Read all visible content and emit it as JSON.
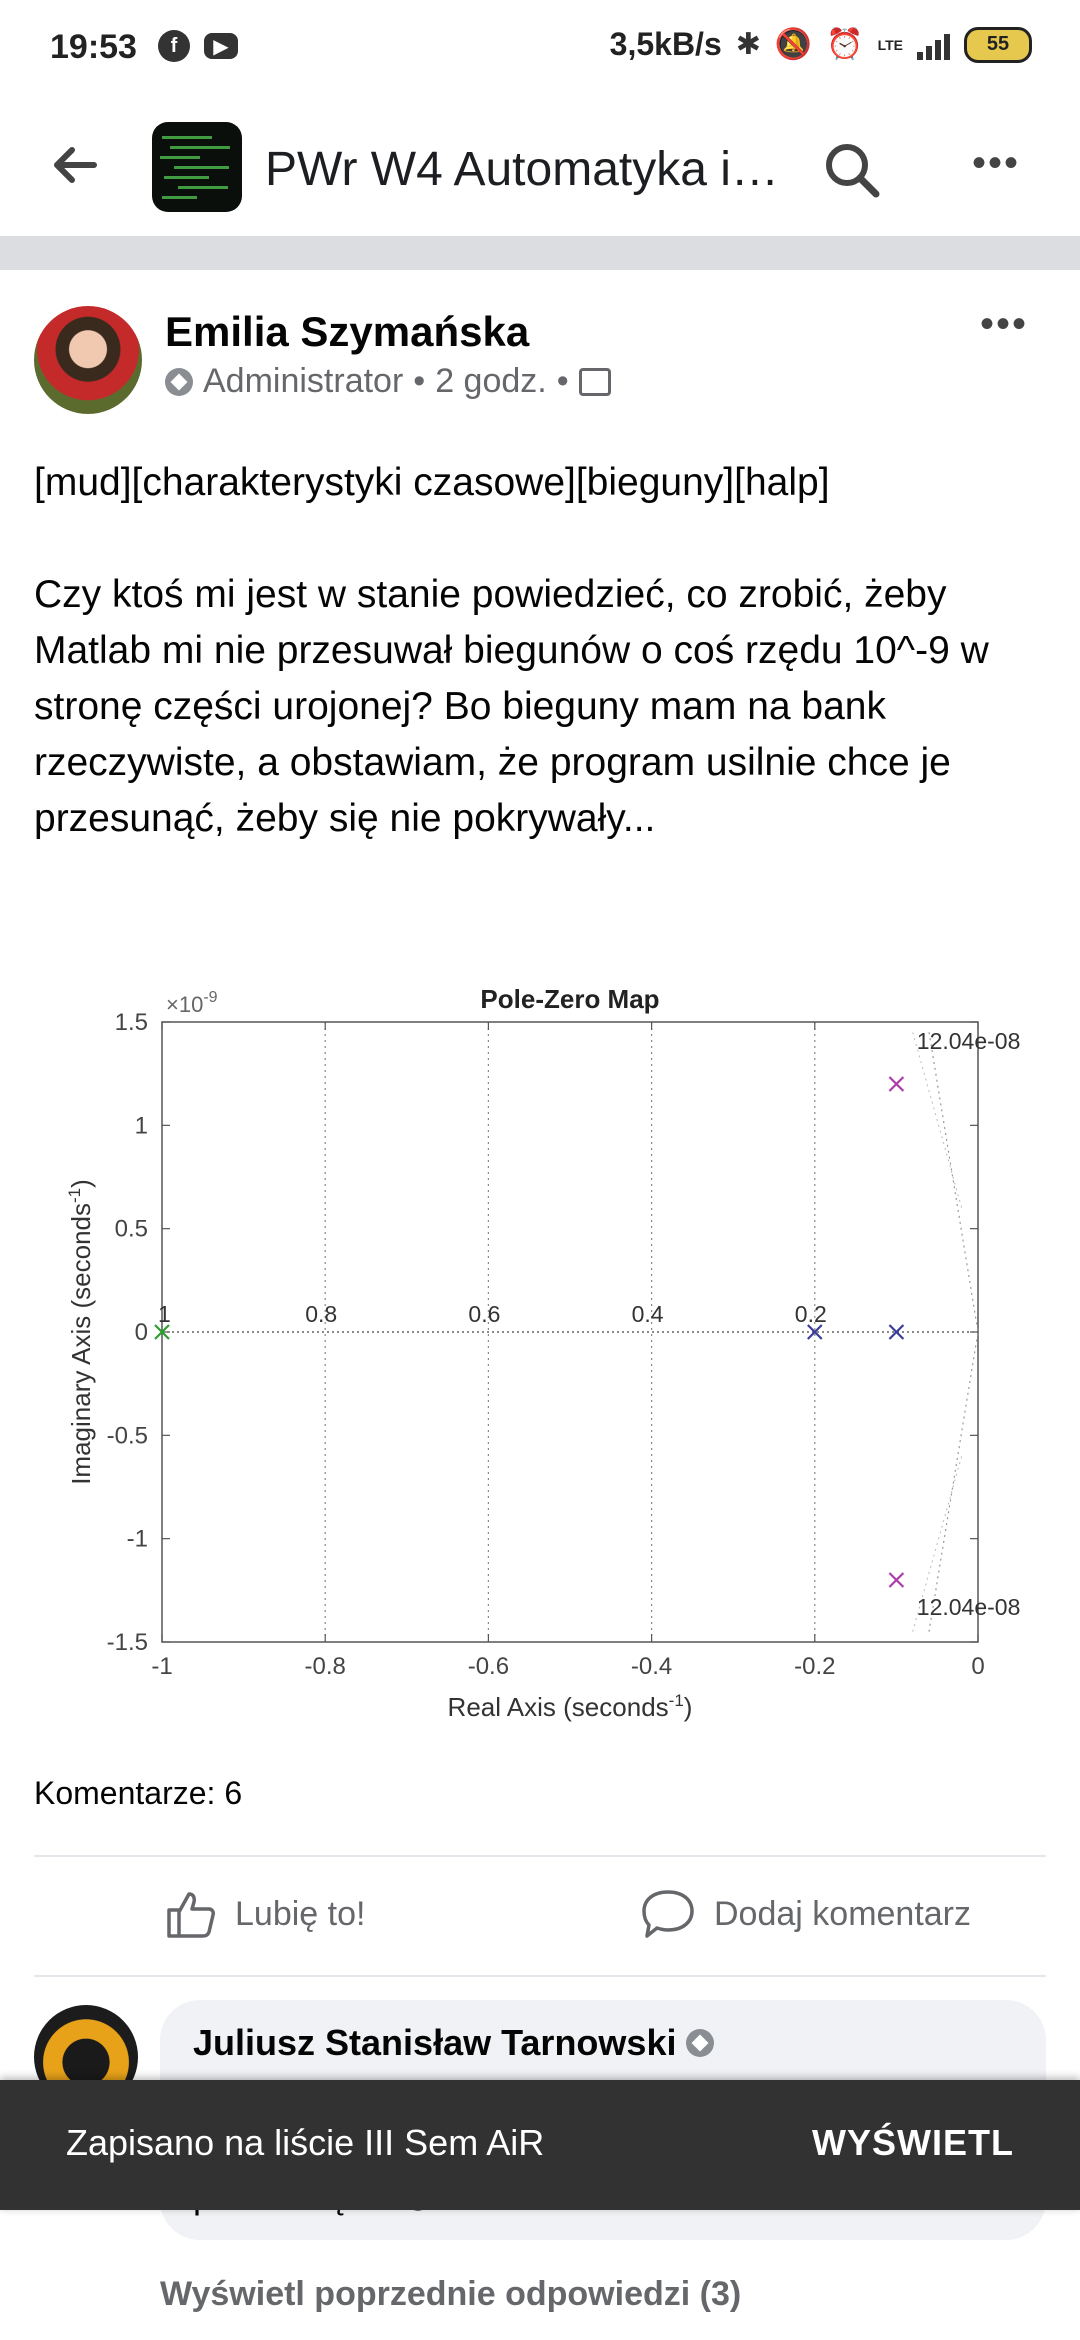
{
  "status_bar": {
    "time": "19:53",
    "speed": "3,5kB/s",
    "network": "LTE",
    "battery": "55",
    "icons": [
      "facebook-icon",
      "youtube-icon",
      "bluetooth-icon",
      "bell-off-icon",
      "alarm-icon",
      "signal-icon",
      "battery-icon"
    ]
  },
  "header": {
    "title": "PWr W4 Automatyka i…"
  },
  "post": {
    "author": "Emilia Szymańska",
    "role": "Administrator",
    "time": "2 godz.",
    "separator": "•",
    "tags_line": "[mud][charakterystyki czasowe][bieguny][halp]",
    "body": "Czy ktoś mi jest w stanie powiedzieć, co zrobić, żeby Matlab mi nie przesuwał biegunów o coś rzędu 10^-9 w stronę części urojonej? Bo bieguny mam na bank rzeczywiste, a obstawiam, że program usilnie chce je przesunąć, żeby się nie pokrywały...",
    "comments_count": "Komentarze: 6"
  },
  "actions": {
    "like": "Lubię to!",
    "comment": "Dodaj komentarz"
  },
  "comment": {
    "author": "Juliusz Stanisław Tarnowski",
    "text_partial": "przesunięte. 😜",
    "view_previous": "Wyświetl poprzednie odpowiedzi (3)"
  },
  "snackbar": {
    "message": "Zapisano na liście III Sem AiR",
    "action": "WYŚWIETL"
  },
  "chart_data": {
    "type": "scatter",
    "title": "Pole-Zero Map",
    "xlabel": "Real Axis (seconds",
    "xlabel_sup": "-1",
    "xlabel_end": ")",
    "ylabel": "Imaginary Axis (seconds",
    "ylabel_sup": "-1",
    "ylabel_end": ")",
    "y_scale_label": "×10",
    "y_scale_exp": "-9",
    "xlim": [
      -1,
      0
    ],
    "ylim": [
      -1.5,
      1.5
    ],
    "x_ticks": [
      "-1",
      "-0.8",
      "-0.6",
      "-0.4",
      "-0.2",
      "0"
    ],
    "x_tick_values": [
      -1,
      -0.8,
      -0.6,
      -0.4,
      -0.2,
      0
    ],
    "y_ticks": [
      "1.5",
      "1",
      "0.5",
      "0",
      "-0.5",
      "-1",
      "-1.5"
    ],
    "y_tick_values": [
      1.5,
      1,
      0.5,
      0,
      -0.5,
      -1,
      -1.5
    ],
    "damping_labels": [
      "1",
      "0.8",
      "0.6",
      "0.4",
      "0.2"
    ],
    "damping_x": [
      -1,
      -0.8,
      -0.6,
      -0.4,
      -0.2
    ],
    "frequency_labels": [
      "12.04e-08",
      "12.04e-08"
    ],
    "series": [
      {
        "color": "#2ca02c",
        "marker": "x",
        "points": [
          [
            -1,
            0
          ]
        ]
      },
      {
        "color": "#3b3b9e",
        "marker": "x",
        "points": [
          [
            -0.2,
            0
          ],
          [
            -0.1,
            0
          ]
        ]
      },
      {
        "color": "#b03aa8",
        "marker": "x",
        "points": [
          [
            -0.1,
            1.2
          ],
          [
            -0.1,
            -1.2
          ]
        ]
      }
    ]
  }
}
